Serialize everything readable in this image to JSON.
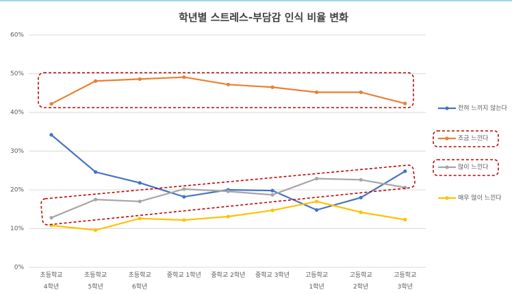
{
  "chart_data": {
    "type": "line",
    "title": "학년별 스트레스-부담감 인식 비율 변화",
    "categories": [
      "초등학교\n4학년",
      "초등학교\n5학년",
      "초등학교\n6학년",
      "중학교 1학년",
      "중학교 2학년",
      "중학교 3학년",
      "고등학교\n1학년",
      "고등학교\n2학년",
      "고등학교\n3학년"
    ],
    "series": [
      {
        "name": "전혀 느끼지 않는다",
        "color": "#4472c4",
        "values": [
          34.2,
          24.6,
          21.8,
          18.2,
          20.0,
          19.8,
          14.8,
          18.0,
          24.8
        ]
      },
      {
        "name": "조금 느낀다",
        "color": "#ed7d31",
        "values": [
          42.2,
          48.1,
          48.6,
          49.1,
          47.2,
          46.5,
          45.2,
          45.2,
          42.3
        ]
      },
      {
        "name": "많이 느낀다",
        "color": "#a5a5a5",
        "values": [
          12.8,
          17.5,
          17.0,
          20.2,
          19.6,
          18.7,
          22.9,
          22.6,
          20.6
        ]
      },
      {
        "name": "매우 많이 느낀다",
        "color": "#ffc000",
        "values": [
          10.8,
          9.6,
          12.6,
          12.2,
          13.1,
          14.7,
          17.0,
          14.2,
          12.3
        ]
      }
    ],
    "ylim": [
      0,
      60
    ],
    "yticks": [
      {
        "value": 0,
        "label": "0%"
      },
      {
        "value": 10,
        "label": "10%"
      },
      {
        "value": 20,
        "label": "20%"
      },
      {
        "value": 30,
        "label": "30%"
      },
      {
        "value": 40,
        "label": "40%"
      },
      {
        "value": 50,
        "label": "50%"
      },
      {
        "value": 60,
        "label": "60%"
      }
    ],
    "grid": true,
    "legend": "right"
  }
}
